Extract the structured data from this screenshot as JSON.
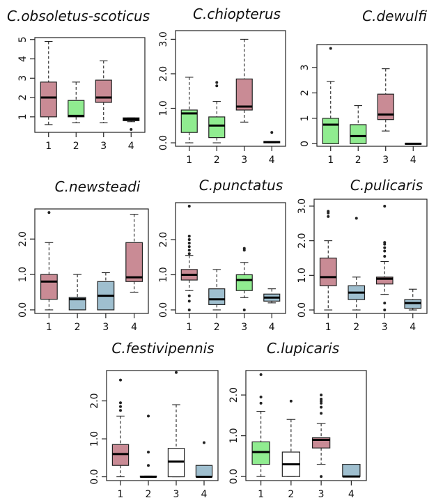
{
  "colors": {
    "pink": "#c98b95",
    "green": "#90ec90",
    "blue": "#9fbfcf",
    "white": "#ffffff",
    "black": "#111111"
  },
  "chart_data": [
    {
      "type": "box",
      "title": "C.obsoletus-scoticus",
      "categories": [
        "1",
        "2",
        "3",
        "4"
      ],
      "yticks": [
        1,
        2,
        3,
        4,
        5
      ],
      "ytick_labels": [
        "1",
        "2",
        "3",
        "4",
        "5"
      ],
      "ylim": [
        0.2,
        5.1
      ],
      "boxes": [
        {
          "color": "pink",
          "min": 0.6,
          "q1": 1.0,
          "median": 2.0,
          "q3": 2.8,
          "max": 4.9,
          "outliers": []
        },
        {
          "color": "green",
          "min": 0.7,
          "q1": 1.0,
          "median": 1.05,
          "q3": 1.85,
          "max": 2.8,
          "outliers": []
        },
        {
          "color": "pink",
          "min": 0.7,
          "q1": 1.75,
          "median": 2.0,
          "q3": 2.9,
          "max": 3.9,
          "outliers": []
        },
        {
          "color": "black",
          "min": 0.75,
          "q1": 0.8,
          "median": 0.88,
          "q3": 0.95,
          "max": 0.95,
          "outliers": [
            0.35
          ]
        }
      ]
    },
    {
      "type": "box",
      "title": "C.chiopterus",
      "categories": [
        "1",
        "2",
        "3",
        "4"
      ],
      "yticks": [
        0,
        1,
        2,
        3
      ],
      "ytick_labels": [
        "0.0",
        "1.0",
        "2.0",
        "3.0"
      ],
      "ylim": [
        -0.1,
        3.25
      ],
      "boxes": [
        {
          "color": "green",
          "min": 0.0,
          "q1": 0.3,
          "median": 0.85,
          "q3": 0.95,
          "max": 1.9,
          "outliers": []
        },
        {
          "color": "green",
          "min": 0.0,
          "q1": 0.15,
          "median": 0.5,
          "q3": 0.75,
          "max": 1.2,
          "outliers": [
            1.65,
            1.75
          ]
        },
        {
          "color": "pink",
          "min": 0.6,
          "q1": 0.95,
          "median": 1.05,
          "q3": 1.85,
          "max": 3.0,
          "outliers": []
        },
        {
          "color": "black",
          "min": 0.0,
          "q1": 0.0,
          "median": 0.02,
          "q3": 0.04,
          "max": 0.04,
          "outliers": [
            0.3
          ]
        }
      ]
    },
    {
      "type": "box",
      "title": "C.dewulfi",
      "categories": [
        "1",
        "2",
        "3",
        "4"
      ],
      "yticks": [
        0,
        1,
        2,
        3
      ],
      "ytick_labels": [
        "0",
        "1",
        "2",
        "3"
      ],
      "ylim": [
        -0.1,
        3.9
      ],
      "boxes": [
        {
          "color": "green",
          "min": 0.0,
          "q1": 0.0,
          "median": 0.75,
          "q3": 1.0,
          "max": 2.45,
          "outliers": [
            3.75
          ]
        },
        {
          "color": "green",
          "min": 0.0,
          "q1": 0.0,
          "median": 0.3,
          "q3": 0.75,
          "max": 1.5,
          "outliers": []
        },
        {
          "color": "pink",
          "min": 0.5,
          "q1": 0.95,
          "median": 1.15,
          "q3": 1.95,
          "max": 2.95,
          "outliers": []
        },
        {
          "color": "black",
          "min": 0.0,
          "q1": 0.0,
          "median": 0.0,
          "q3": 0.02,
          "max": 0.02,
          "outliers": []
        }
      ]
    },
    {
      "type": "box",
      "title": "C.newsteadi",
      "categories": [
        "1",
        "2",
        "3",
        "4"
      ],
      "yticks": [
        0,
        1,
        2
      ],
      "ytick_labels": [
        "0.0",
        "1.0",
        "2.0"
      ],
      "ylim": [
        -0.1,
        2.85
      ],
      "boxes": [
        {
          "color": "pink",
          "min": 0.0,
          "q1": 0.3,
          "median": 0.8,
          "q3": 1.0,
          "max": 1.9,
          "outliers": [
            2.75
          ]
        },
        {
          "color": "blue",
          "min": 0.0,
          "q1": 0.0,
          "median": 0.3,
          "q3": 0.35,
          "max": 1.0,
          "outliers": []
        },
        {
          "color": "blue",
          "min": 0.0,
          "q1": 0.0,
          "median": 0.4,
          "q3": 0.8,
          "max": 1.05,
          "outliers": []
        },
        {
          "color": "pink",
          "min": 0.5,
          "q1": 0.8,
          "median": 0.92,
          "q3": 1.9,
          "max": 2.7,
          "outliers": []
        }
      ]
    },
    {
      "type": "box",
      "title": "C.punctatus",
      "categories": [
        "1",
        "2",
        "3",
        "4"
      ],
      "yticks": [
        0,
        1,
        2
      ],
      "ytick_labels": [
        "0.0",
        "1.0",
        "2.0"
      ],
      "ylim": [
        -0.1,
        3.05
      ],
      "boxes": [
        {
          "color": "pink",
          "min": 0.55,
          "q1": 0.85,
          "median": 1.0,
          "q3": 1.15,
          "max": 1.55,
          "outliers": [
            0.0,
            0.25,
            0.4,
            1.6,
            1.7,
            1.8,
            1.9,
            2.0,
            2.1,
            2.95
          ]
        },
        {
          "color": "blue",
          "min": 0.0,
          "q1": 0.15,
          "median": 0.3,
          "q3": 0.6,
          "max": 1.15,
          "outliers": []
        },
        {
          "color": "green",
          "min": 0.35,
          "q1": 0.55,
          "median": 0.85,
          "q3": 1.0,
          "max": 1.35,
          "outliers": [
            0.0,
            1.7,
            1.75
          ]
        },
        {
          "color": "blue",
          "min": 0.2,
          "q1": 0.25,
          "median": 0.35,
          "q3": 0.45,
          "max": 0.6,
          "outliers": []
        }
      ]
    },
    {
      "type": "box",
      "title": "C.pulicaris",
      "categories": [
        "1",
        "2",
        "3",
        "4"
      ],
      "yticks": [
        0,
        1,
        2,
        3
      ],
      "ytick_labels": [
        "0.0",
        "1.0",
        "2.0",
        "3.0"
      ],
      "ylim": [
        -0.1,
        3.2
      ],
      "boxes": [
        {
          "color": "pink",
          "min": 0.0,
          "q1": 0.7,
          "median": 0.95,
          "q3": 1.5,
          "max": 2.0,
          "outliers": [
            2.7,
            2.8,
            2.85
          ]
        },
        {
          "color": "blue",
          "min": 0.0,
          "q1": 0.3,
          "median": 0.5,
          "q3": 0.7,
          "max": 0.95,
          "outliers": [
            2.65
          ]
        },
        {
          "color": "pink",
          "min": 0.45,
          "q1": 0.75,
          "median": 0.9,
          "q3": 0.95,
          "max": 1.4,
          "outliers": [
            0.0,
            0.2,
            1.55,
            1.7,
            1.8,
            1.9,
            1.95,
            3.0
          ]
        },
        {
          "color": "blue",
          "min": 0.0,
          "q1": 0.05,
          "median": 0.2,
          "q3": 0.3,
          "max": 0.6,
          "outliers": []
        }
      ]
    },
    {
      "type": "box",
      "title": "C.festivipennis",
      "categories": [
        "1",
        "2",
        "3",
        "4"
      ],
      "yticks": [
        0,
        1,
        2
      ],
      "ytick_labels": [
        "0.0",
        "1.0",
        "2.0"
      ],
      "ylim": [
        -0.1,
        2.8
      ],
      "boxes": [
        {
          "color": "pink",
          "min": 0.0,
          "q1": 0.3,
          "median": 0.6,
          "q3": 0.85,
          "max": 1.6,
          "outliers": [
            1.75,
            1.85,
            1.95,
            2.55
          ]
        },
        {
          "color": "pink",
          "min": 0.0,
          "q1": 0.0,
          "median": 0.0,
          "q3": 0.02,
          "max": 0.02,
          "outliers": [
            0.3,
            0.65,
            1.6
          ]
        },
        {
          "color": "white",
          "min": 0.0,
          "q1": 0.0,
          "median": 0.4,
          "q3": 0.75,
          "max": 1.9,
          "outliers": [
            2.75
          ]
        },
        {
          "color": "blue",
          "min": 0.0,
          "q1": 0.0,
          "median": 0.0,
          "q3": 0.3,
          "max": 0.3,
          "outliers": [
            0.9
          ]
        }
      ]
    },
    {
      "type": "box",
      "title": "C.lupicaris",
      "categories": [
        "1",
        "2",
        "3",
        "4"
      ],
      "yticks": [
        0,
        1,
        2
      ],
      "ytick_labels": [
        "0.0",
        "1.0",
        "2.0"
      ],
      "ylim": [
        -0.1,
        2.6
      ],
      "boxes": [
        {
          "color": "green",
          "min": 0.0,
          "q1": 0.3,
          "median": 0.6,
          "q3": 0.85,
          "max": 1.6,
          "outliers": [
            1.8,
            1.95,
            2.5
          ]
        },
        {
          "color": "white",
          "min": 0.0,
          "q1": 0.0,
          "median": 0.3,
          "q3": 0.6,
          "max": 1.4,
          "outliers": [
            1.85
          ]
        },
        {
          "color": "pink",
          "min": 0.3,
          "q1": 0.7,
          "median": 0.9,
          "q3": 0.95,
          "max": 1.3,
          "outliers": [
            0.0,
            1.55,
            1.7,
            1.8,
            1.85,
            1.9,
            2.0
          ]
        },
        {
          "color": "blue",
          "min": 0.0,
          "q1": 0.0,
          "median": 0.0,
          "q3": 0.3,
          "max": 0.3,
          "outliers": []
        }
      ]
    }
  ]
}
